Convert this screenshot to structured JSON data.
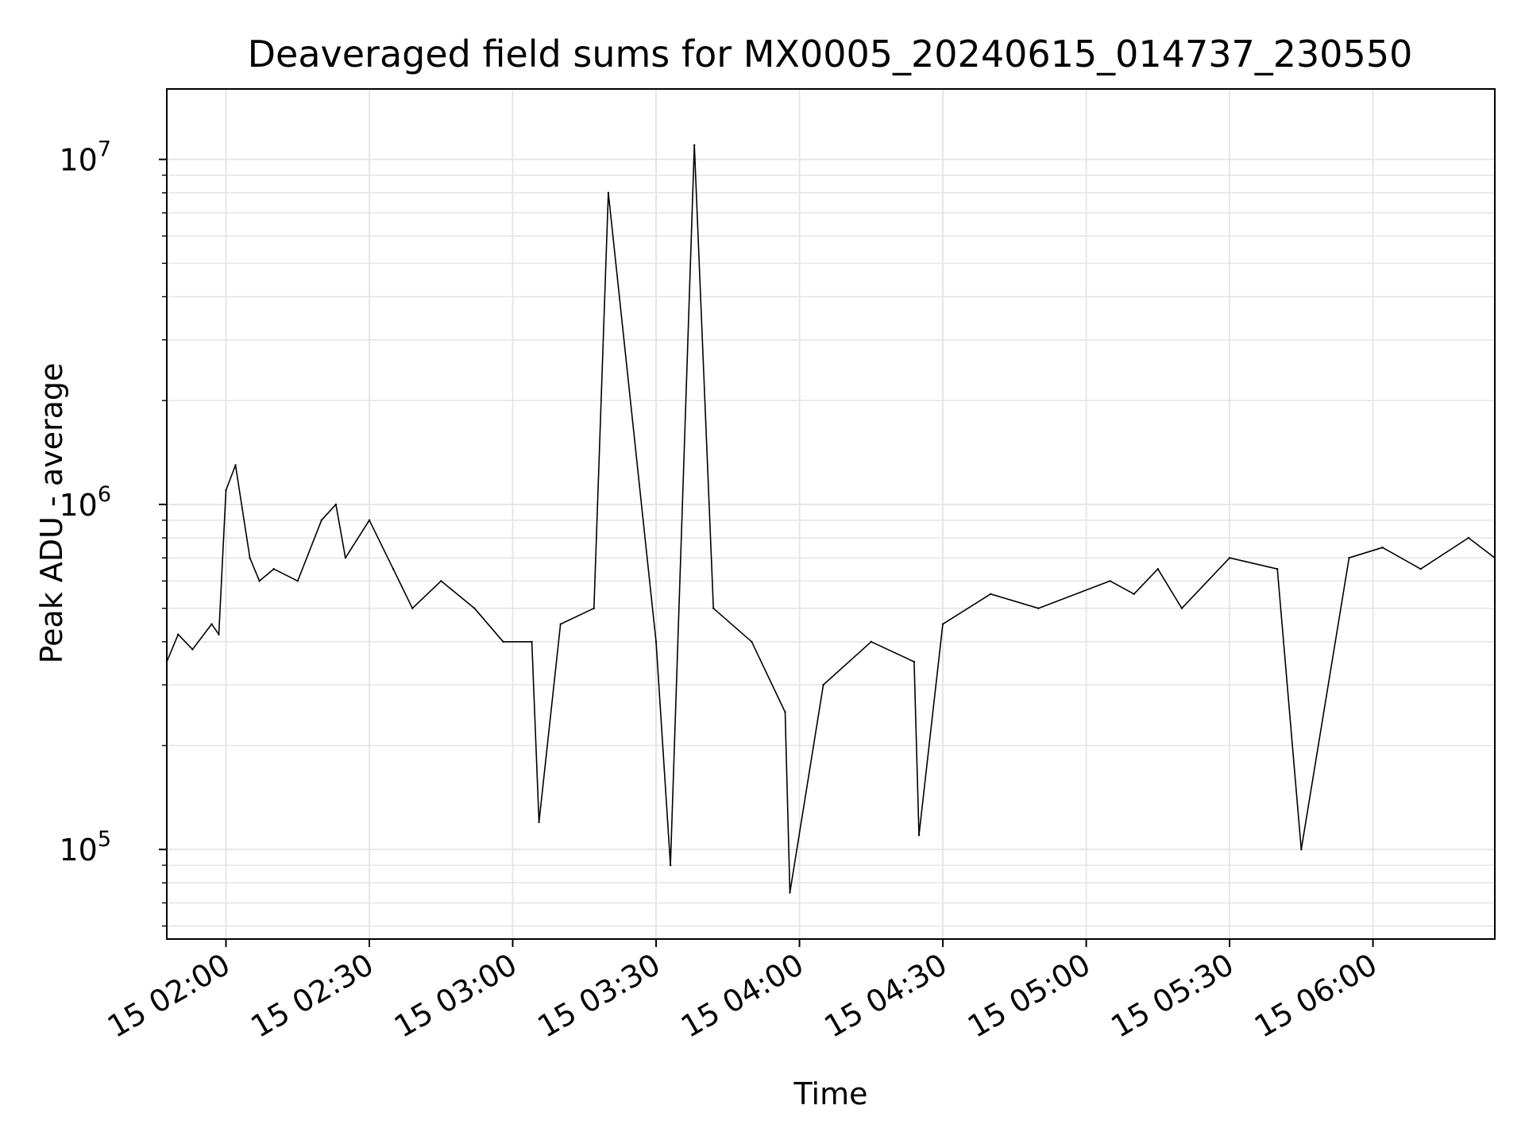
{
  "chart_data": {
    "type": "line",
    "title": "Deaveraged field sums for MX0005_20240615_014737_230550",
    "xlabel": "Time",
    "ylabel": "Peak ADU - average",
    "yscale": "log",
    "xlim": [
      "2024-06-15 01:47:37",
      "2024-06-15 06:25:30"
    ],
    "ylim": [
      55000,
      16000000
    ],
    "grid": true,
    "x_ticks": [
      "15 02:00",
      "15 02:30",
      "15 03:00",
      "15 03:30",
      "15 04:00",
      "15 04:30",
      "15 05:00",
      "15 05:30",
      "15 06:00"
    ],
    "y_ticks": [
      {
        "base": "10",
        "exp": "5"
      },
      {
        "base": "10",
        "exp": "6"
      },
      {
        "base": "10",
        "exp": "7"
      }
    ],
    "line_color": "#000000",
    "series": [
      {
        "x": [
          "2024-06-15 01:47:37",
          "2024-06-15 01:50:00",
          "2024-06-15 01:53:00",
          "2024-06-15 01:57:00",
          "2024-06-15 01:58:30",
          "2024-06-15 02:00:00",
          "2024-06-15 02:02:00",
          "2024-06-15 02:05:00",
          "2024-06-15 02:07:00",
          "2024-06-15 02:10:00",
          "2024-06-15 02:15:00",
          "2024-06-15 02:20:00",
          "2024-06-15 02:23:00",
          "2024-06-15 02:25:00",
          "2024-06-15 02:30:00",
          "2024-06-15 02:35:00",
          "2024-06-15 02:39:00",
          "2024-06-15 02:45:00",
          "2024-06-15 02:52:00",
          "2024-06-15 02:58:00",
          "2024-06-15 03:04:00",
          "2024-06-15 03:05:30",
          "2024-06-15 03:10:00",
          "2024-06-15 03:17:00",
          "2024-06-15 03:20:00",
          "2024-06-15 03:30:00",
          "2024-06-15 03:33:00",
          "2024-06-15 03:38:00",
          "2024-06-15 03:42:00",
          "2024-06-15 03:50:00",
          "2024-06-15 03:57:00",
          "2024-06-15 03:58:00",
          "2024-06-15 04:05:00",
          "2024-06-15 04:15:00",
          "2024-06-15 04:24:00",
          "2024-06-15 04:25:00",
          "2024-06-15 04:30:00",
          "2024-06-15 04:40:00",
          "2024-06-15 04:50:00",
          "2024-06-15 05:05:00",
          "2024-06-15 05:10:00",
          "2024-06-15 05:15:00",
          "2024-06-15 05:20:00",
          "2024-06-15 05:30:00",
          "2024-06-15 05:40:00",
          "2024-06-15 05:45:00",
          "2024-06-15 05:55:00",
          "2024-06-15 06:02:00",
          "2024-06-15 06:10:00",
          "2024-06-15 06:20:00",
          "2024-06-15 06:25:30"
        ],
        "values": [
          350000,
          420000,
          380000,
          450000,
          420000,
          1100000,
          1300000,
          700000,
          600000,
          650000,
          600000,
          900000,
          1000000,
          700000,
          900000,
          650000,
          500000,
          600000,
          500000,
          400000,
          400000,
          120000,
          450000,
          500000,
          8000000,
          400000,
          90000,
          11000000,
          500000,
          400000,
          250000,
          75000,
          300000,
          400000,
          350000,
          110000,
          450000,
          550000,
          500000,
          600000,
          550000,
          650000,
          500000,
          700000,
          650000,
          100000,
          700000,
          750000,
          650000,
          800000,
          700000
        ]
      }
    ]
  }
}
